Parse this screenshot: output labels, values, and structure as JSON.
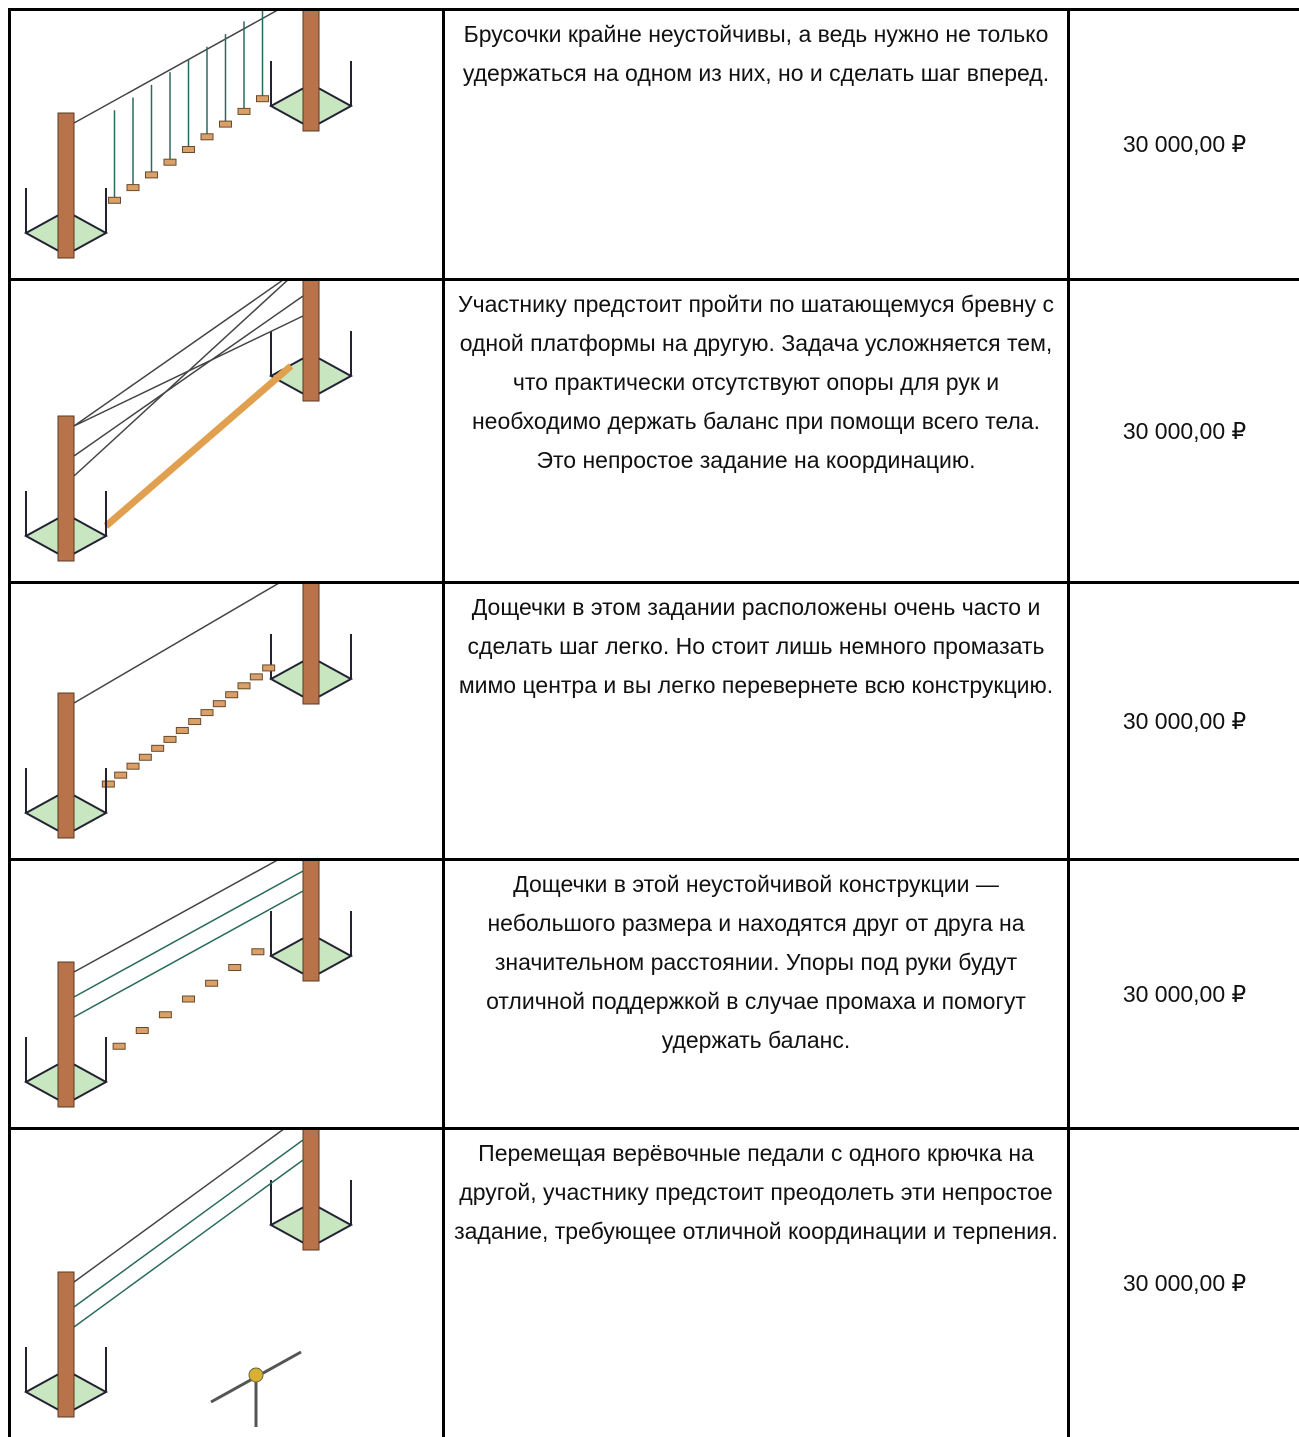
{
  "table": {
    "rows": [
      {
        "description": "Брусочки крайне неустойчивы, а ведь нужно не только удержаться на одном из них, но и сделать шаг вперед.",
        "price": "30 000,00 ₽"
      },
      {
        "description": "Участнику предстоит пройти по шатающемуся бревну с одной платформы на другую. Задача усложняется тем, что практически отсутствуют опоры для рук и необходимо держать баланс при помощи всего тела. Это непростое задание на координацию.",
        "price": "30 000,00 ₽"
      },
      {
        "description": "Дощечки в этом задании расположены очень часто и сделать шаг легко. Но стоит лишь немного промазать мимо центра и вы легко перевернете всю конструкцию.",
        "price": "30 000,00 ₽"
      },
      {
        "description": "Дощечки в этой неустойчивой конструкции — небольшого размера и находятся друг от друга на значительном расстоянии. Упоры под руки будут отличной поддержкой в случае промаха и помогут удержать баланс.",
        "price": "30 000,00 ₽"
      },
      {
        "description": "Перемещая верёвочные педали с одного крючка на другой, участнику предстоит преодолеть  эти непростое задание, требующее отличной координации и терпения.",
        "price": "30 000,00 ₽"
      }
    ]
  }
}
